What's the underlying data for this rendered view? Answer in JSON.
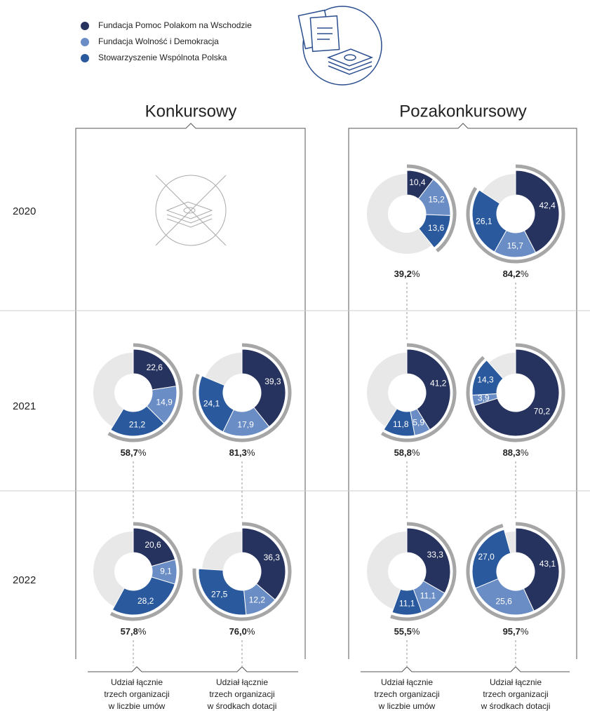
{
  "legend": [
    {
      "name": "Fundacja Pomoc Polakom na Wschodzie",
      "color": "#27335f"
    },
    {
      "name": "Fundacja Wolność i Demokracja",
      "color": "#6b8dc5"
    },
    {
      "name": "Stowarzyszenie Wspólnota Polska",
      "color": "#2a5a9d"
    }
  ],
  "columns": [
    "Konkursowy",
    "Pozakonkursowy"
  ],
  "rows": [
    "2020",
    "2021",
    "2022"
  ],
  "unit": "%",
  "captions": [
    [
      "Udział łącznie",
      "trzech organizacji",
      "w liczbie umów"
    ],
    [
      "Udział łącznie",
      "trzech organizacji",
      "w środkach dotacji"
    ]
  ],
  "chart_data": [
    {
      "type": "pie",
      "values": [
        22.6,
        14.9,
        21.2
      ],
      "value_labels": [
        "22,6",
        "14,9",
        "21,2"
      ],
      "total": 58.7,
      "total_label": "58,7"
    },
    {
      "type": "pie",
      "values": [
        39.3,
        17.9,
        24.1
      ],
      "value_labels": [
        "39,3",
        "17,9",
        "24,1"
      ],
      "total": 81.3,
      "total_label": "81,3"
    },
    {
      "type": "pie",
      "values": [
        20.6,
        9.1,
        28.2
      ],
      "value_labels": [
        "20,6",
        "9,1",
        "28,2"
      ],
      "total": 57.8,
      "total_label": "57,8"
    },
    {
      "type": "pie",
      "values": [
        36.3,
        12.2,
        27.5
      ],
      "value_labels": [
        "36,3",
        "12,2",
        "27,5"
      ],
      "total": 76.0,
      "total_label": "76,0"
    },
    {
      "type": "pie",
      "values": [
        10.4,
        15.2,
        13.6
      ],
      "value_labels": [
        "10,4",
        "15,2",
        "13,6"
      ],
      "total": 39.2,
      "total_label": "39,2"
    },
    {
      "type": "pie",
      "values": [
        42.4,
        15.7,
        26.1
      ],
      "value_labels": [
        "42,4",
        "15,7",
        "26,1"
      ],
      "total": 84.2,
      "total_label": "84,2"
    },
    {
      "type": "pie",
      "values": [
        41.2,
        5.9,
        11.8
      ],
      "value_labels": [
        "41,2",
        "5,9",
        "11,8"
      ],
      "total": 58.8,
      "total_label": "58,8"
    },
    {
      "type": "pie",
      "values": [
        70.2,
        3.9,
        14.3
      ],
      "value_labels": [
        "70,2",
        "3,9",
        "14,3"
      ],
      "total": 88.3,
      "total_label": "88,3"
    },
    {
      "type": "pie",
      "values": [
        33.3,
        11.1,
        11.1
      ],
      "value_labels": [
        "33,3",
        "11,1",
        "11,1"
      ],
      "total": 55.5,
      "total_label": "55,5"
    },
    {
      "type": "pie",
      "values": [
        43.1,
        25.6,
        27.0
      ],
      "value_labels": [
        "43,1",
        "25,6",
        "27,0"
      ],
      "total": 95.7,
      "total_label": "95,7"
    }
  ]
}
